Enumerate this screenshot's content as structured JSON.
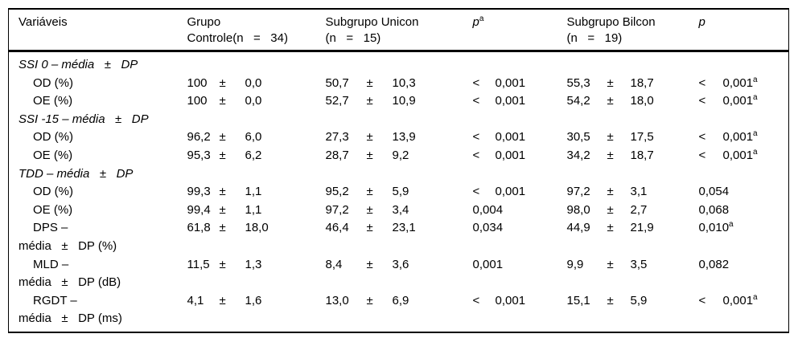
{
  "pm_symbol": "±",
  "table": {
    "columns": [
      {
        "id": "variaveis",
        "lines": [
          "Variáveis"
        ],
        "italic": false,
        "sup": ""
      },
      {
        "id": "controle",
        "lines": [
          "Grupo",
          "Controle(n   =   34)"
        ],
        "italic": false,
        "sup": ""
      },
      {
        "id": "unicon",
        "lines": [
          "Subgrupo Unicon",
          "(n   =   15)"
        ],
        "italic": false,
        "sup": ""
      },
      {
        "id": "p1",
        "lines": [
          "p"
        ],
        "italic": true,
        "sup": "a"
      },
      {
        "id": "bilcon",
        "lines": [
          "Subgrupo Bilcon",
          "(n   =   19)"
        ],
        "italic": false,
        "sup": ""
      },
      {
        "id": "p2",
        "lines": [
          "p"
        ],
        "italic": true,
        "sup": ""
      }
    ],
    "rows": [
      {
        "type": "section",
        "label": "SSI 0 – média   ±   DP"
      },
      {
        "type": "data",
        "label": "OD (%)",
        "controle": {
          "mean": "100",
          "sd": "0,0"
        },
        "unicon": {
          "mean": "50,7",
          "sd": "10,3"
        },
        "p1": {
          "lt": "<",
          "value": "0,001",
          "sup": ""
        },
        "bilcon": {
          "mean": "55,3",
          "sd": "18,7"
        },
        "p2": {
          "lt": "<",
          "value": "0,001",
          "sup": "a"
        }
      },
      {
        "type": "data",
        "label": "OE (%)",
        "controle": {
          "mean": "100",
          "sd": "0,0"
        },
        "unicon": {
          "mean": "52,7",
          "sd": "10,9"
        },
        "p1": {
          "lt": "<",
          "value": "0,001",
          "sup": ""
        },
        "bilcon": {
          "mean": "54,2",
          "sd": "18,0"
        },
        "p2": {
          "lt": "<",
          "value": "0,001",
          "sup": "a"
        }
      },
      {
        "type": "section",
        "label": "SSI -15 – média   ±   DP"
      },
      {
        "type": "data",
        "label": "OD (%)",
        "controle": {
          "mean": "96,2",
          "sd": "6,0"
        },
        "unicon": {
          "mean": "27,3",
          "sd": "13,9"
        },
        "p1": {
          "lt": "<",
          "value": "0,001",
          "sup": ""
        },
        "bilcon": {
          "mean": "30,5",
          "sd": "17,5"
        },
        "p2": {
          "lt": "<",
          "value": "0,001",
          "sup": "a"
        }
      },
      {
        "type": "data",
        "label": "OE (%)",
        "controle": {
          "mean": "95,3",
          "sd": "6,2"
        },
        "unicon": {
          "mean": "28,7",
          "sd": "9,2"
        },
        "p1": {
          "lt": "<",
          "value": "0,001",
          "sup": ""
        },
        "bilcon": {
          "mean": "34,2",
          "sd": "18,7"
        },
        "p2": {
          "lt": "<",
          "value": "0,001",
          "sup": "a"
        }
      },
      {
        "type": "section",
        "label": "TDD – média   ±   DP"
      },
      {
        "type": "data",
        "label": "OD (%)",
        "controle": {
          "mean": "99,3",
          "sd": "1,1"
        },
        "unicon": {
          "mean": "95,2",
          "sd": "5,9"
        },
        "p1": {
          "lt": "<",
          "value": "0,001",
          "sup": ""
        },
        "bilcon": {
          "mean": "97,2",
          "sd": "3,1"
        },
        "p2": {
          "lt": "",
          "value": "0,054",
          "sup": ""
        }
      },
      {
        "type": "data",
        "label": "OE (%)",
        "controle": {
          "mean": "99,4",
          "sd": "1,1"
        },
        "unicon": {
          "mean": "97,2",
          "sd": "3,4"
        },
        "p1": {
          "lt": "",
          "value": "0,004",
          "sup": ""
        },
        "bilcon": {
          "mean": "98,0",
          "sd": "2,7"
        },
        "p2": {
          "lt": "",
          "value": "0,068",
          "sup": ""
        }
      },
      {
        "type": "data",
        "label": "DPS –",
        "label2": "média   ±   DP (%)",
        "controle": {
          "mean": "61,8",
          "sd": "18,0"
        },
        "unicon": {
          "mean": "46,4",
          "sd": "23,1"
        },
        "p1": {
          "lt": "",
          "value": "0,034",
          "sup": ""
        },
        "bilcon": {
          "mean": "44,9",
          "sd": "21,9"
        },
        "p2": {
          "lt": "",
          "value": "0,010",
          "sup": "a"
        }
      },
      {
        "type": "data",
        "label": "MLD –",
        "label2": "média   ±   DP (dB)",
        "controle": {
          "mean": "11,5",
          "sd": "1,3"
        },
        "unicon": {
          "mean": "8,4",
          "sd": "3,6"
        },
        "p1": {
          "lt": "",
          "value": "0,001",
          "sup": ""
        },
        "bilcon": {
          "mean": "9,9",
          "sd": "3,5"
        },
        "p2": {
          "lt": "",
          "value": "0,082",
          "sup": ""
        }
      },
      {
        "type": "data",
        "label": "RGDT –",
        "label2": "média   ±   DP (ms)",
        "controle": {
          "mean": "4,1",
          "sd": "1,6"
        },
        "unicon": {
          "mean": "13,0",
          "sd": "6,9"
        },
        "p1": {
          "lt": "<",
          "value": "0,001",
          "sup": ""
        },
        "bilcon": {
          "mean": "15,1",
          "sd": "5,9"
        },
        "p2": {
          "lt": "<",
          "value": "0,001",
          "sup": "a"
        }
      }
    ]
  }
}
